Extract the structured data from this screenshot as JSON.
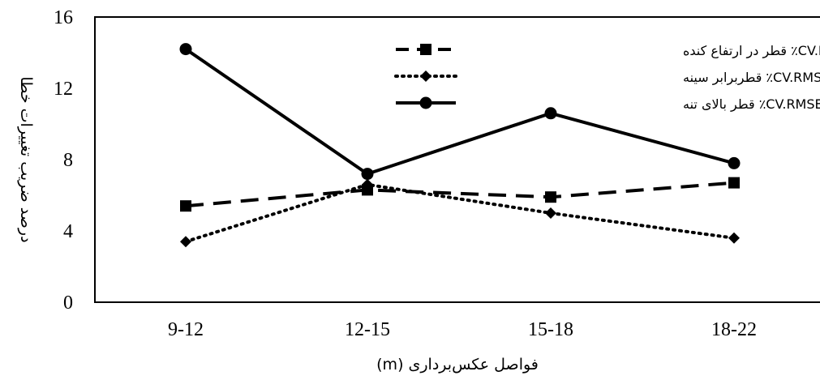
{
  "chart_data": {
    "type": "line",
    "title": "",
    "xlabel": "فواصل عکس‌برداری (m)",
    "ylabel": "درصد ضریب تغییرات خطا",
    "categories": [
      "9-12",
      "12-15",
      "15-18",
      "18-22"
    ],
    "yticks": [
      "0",
      "4",
      "8",
      "12",
      "16"
    ],
    "ylim": [
      0,
      16
    ],
    "grid": false,
    "legend": "top-right",
    "series": [
      {
        "name": "CV.RMSE٪ قطر در ارتفاع کنده",
        "values": [
          5.4,
          6.3,
          5.9,
          6.7
        ],
        "line_style": "dashed",
        "marker": "square",
        "color": "#000000"
      },
      {
        "name": "CV.RMSE٪ قطربرابر سینه",
        "values": [
          3.4,
          6.6,
          5.0,
          3.6
        ],
        "line_style": "dotted",
        "marker": "diamond",
        "color": "#000000"
      },
      {
        "name": "CV.RMSE٪ قطر بالای تنه",
        "values": [
          14.2,
          7.2,
          10.6,
          7.8
        ],
        "line_style": "solid",
        "marker": "circle",
        "color": "#000000"
      }
    ]
  }
}
